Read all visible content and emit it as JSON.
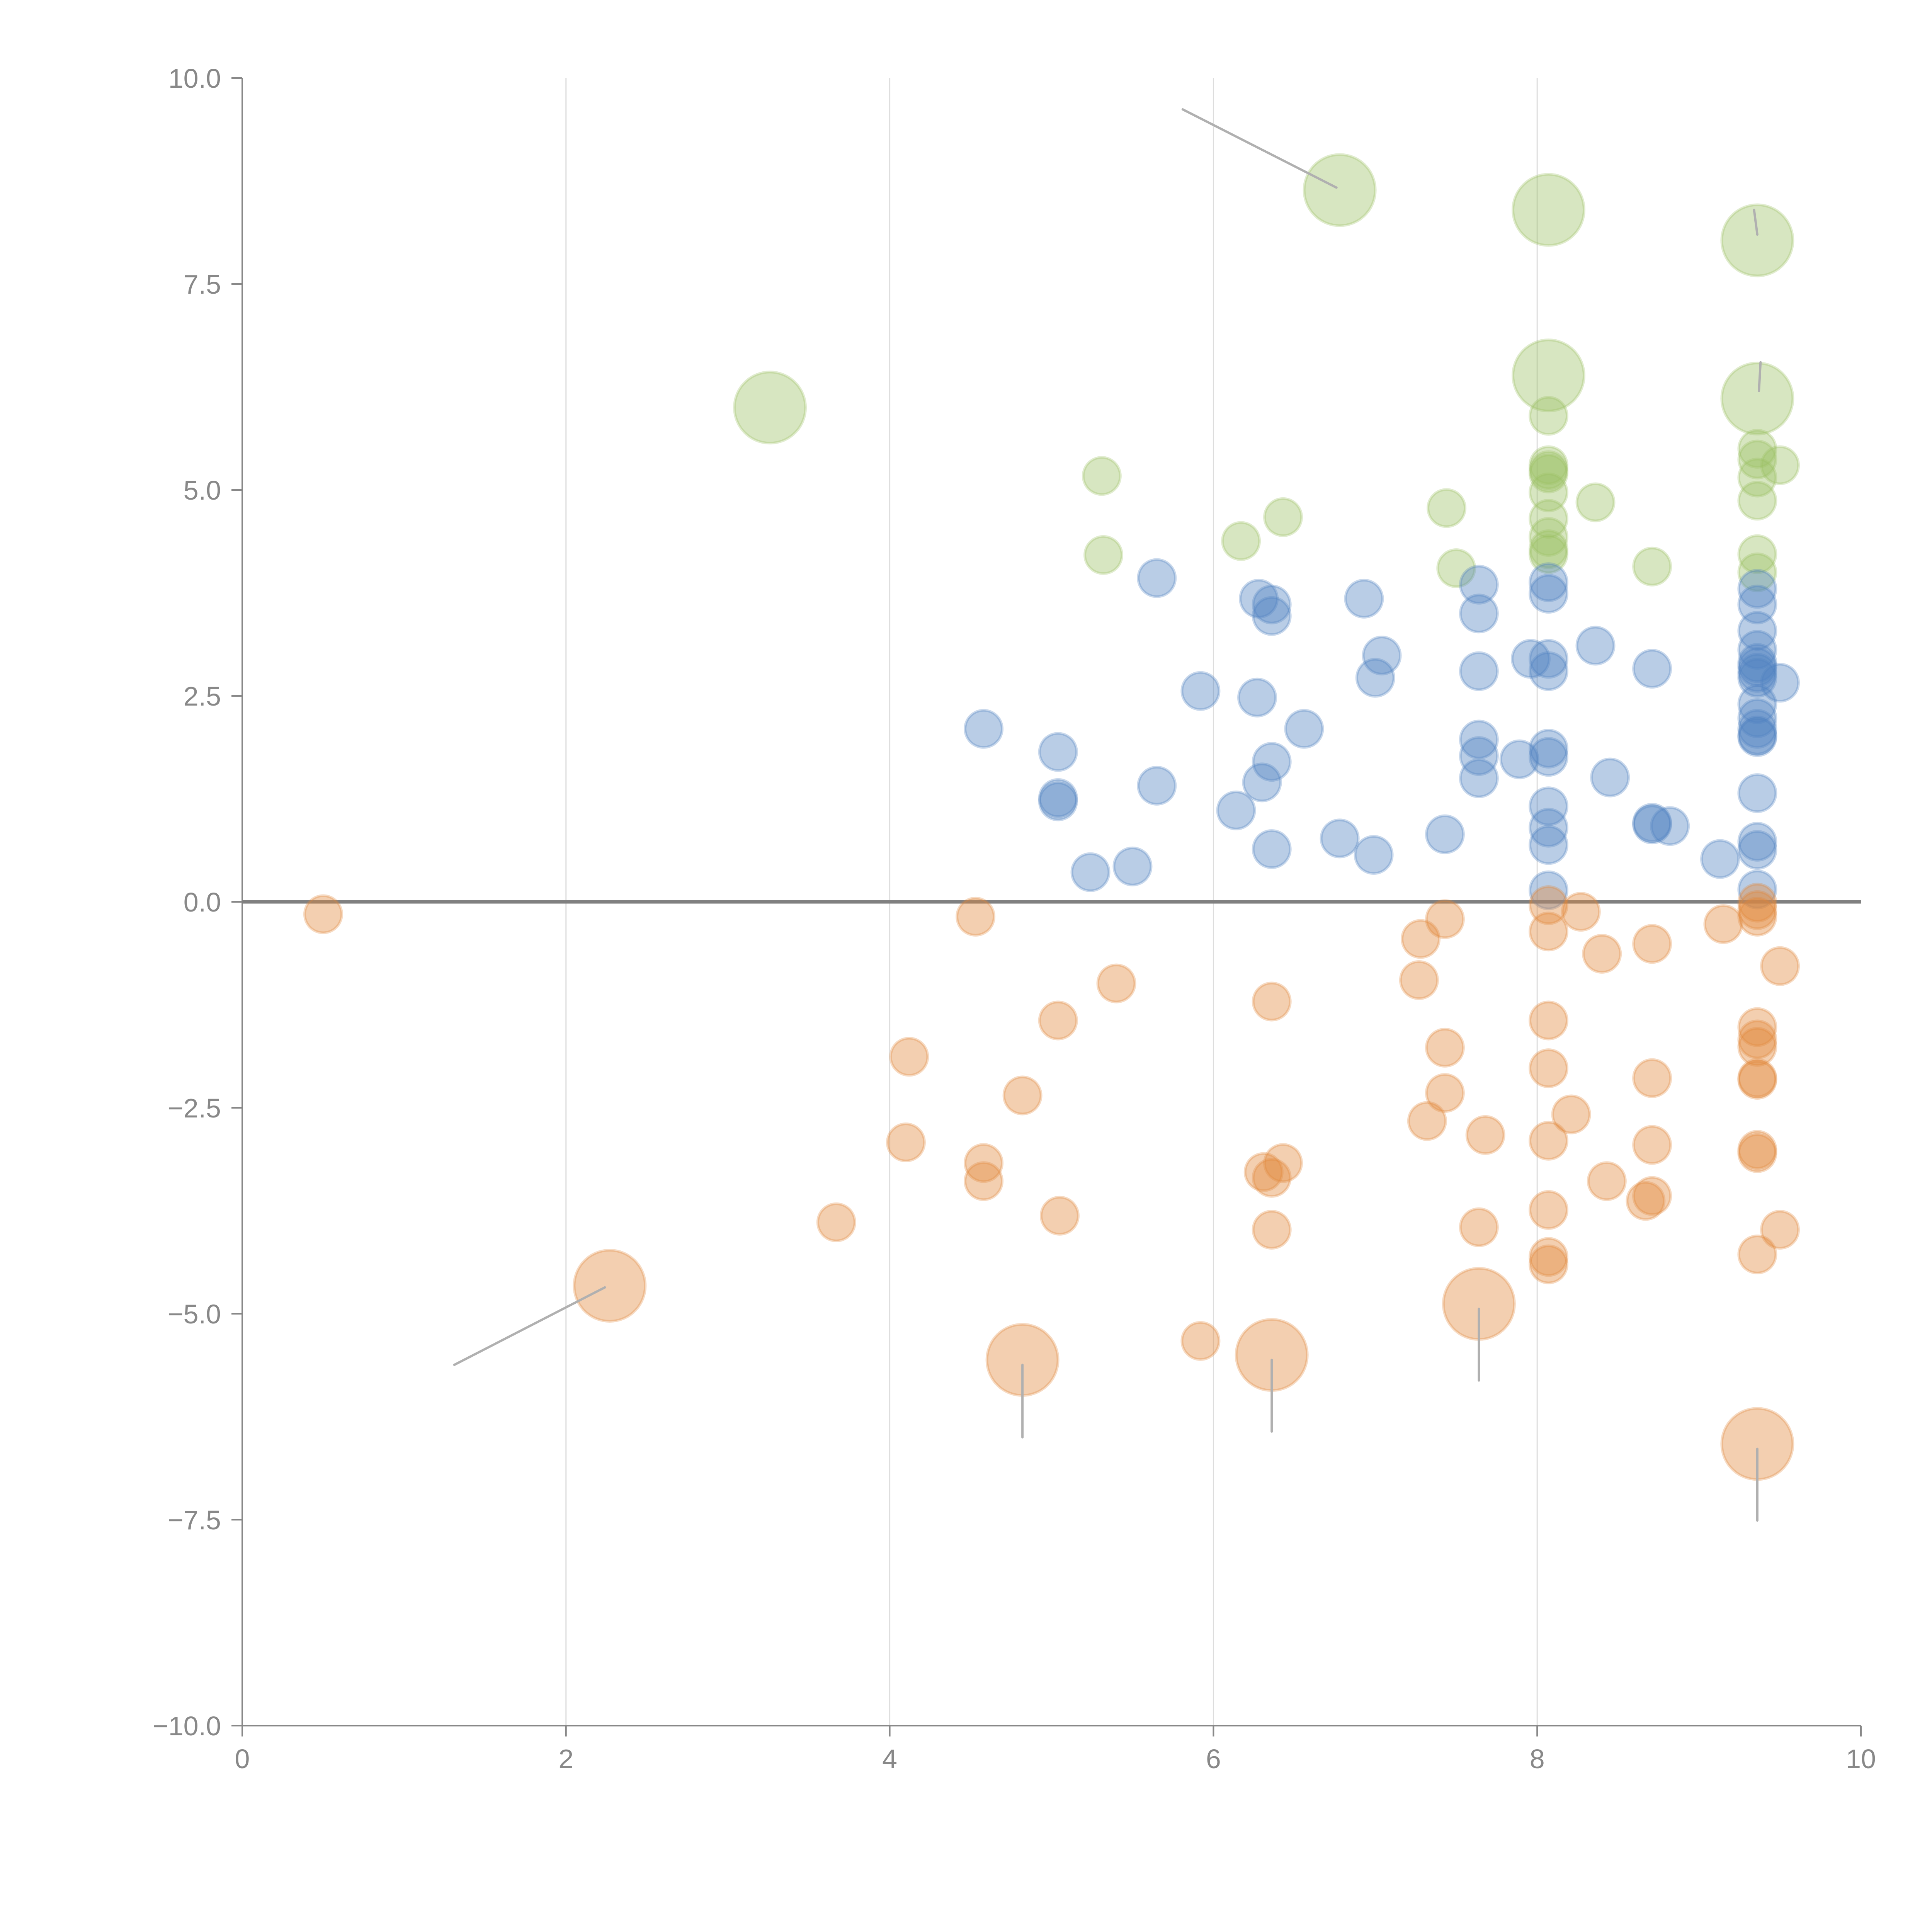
{
  "chart_data": {
    "type": "scatter",
    "title": "",
    "xlabel": "",
    "ylabel": "",
    "xlim": [
      0,
      10
    ],
    "ylim": [
      -10,
      10
    ],
    "x_ticks": [
      "0",
      "2",
      "4",
      "6",
      "8",
      "10"
    ],
    "y_ticks": [
      "10.0",
      "7.5",
      "5.0",
      "2.5",
      "0.0",
      "−2.5",
      "−5.0",
      "−7.5",
      "−10.0"
    ],
    "x_tick_values": [
      0,
      2,
      4,
      6,
      8,
      10
    ],
    "y_tick_values": [
      10,
      7.5,
      5,
      2.5,
      0,
      -2.5,
      -5,
      -7.5,
      -10
    ],
    "grid": "vertical",
    "legend": "none",
    "series": [
      {
        "name": "green",
        "color": "#9BC165",
        "points": [
          {
            "x": 6.78,
            "y": 8.64,
            "size": "large"
          },
          {
            "x": 8.07,
            "y": 8.4,
            "size": "large"
          },
          {
            "x": 9.36,
            "y": 8.03,
            "size": "large"
          },
          {
            "x": 3.26,
            "y": 6.0,
            "size": "large"
          },
          {
            "x": 8.07,
            "y": 6.39,
            "size": "large"
          },
          {
            "x": 9.36,
            "y": 6.11,
            "size": "large"
          },
          {
            "x": 8.07,
            "y": 5.9
          },
          {
            "x": 5.31,
            "y": 5.17
          },
          {
            "x": 8.07,
            "y": 5.3
          },
          {
            "x": 8.07,
            "y": 5.24
          },
          {
            "x": 8.07,
            "y": 5.2
          },
          {
            "x": 9.36,
            "y": 5.5
          },
          {
            "x": 9.36,
            "y": 5.37
          },
          {
            "x": 9.5,
            "y": 5.3
          },
          {
            "x": 9.36,
            "y": 5.15
          },
          {
            "x": 8.07,
            "y": 4.97
          },
          {
            "x": 9.36,
            "y": 4.87
          },
          {
            "x": 8.36,
            "y": 4.85
          },
          {
            "x": 7.44,
            "y": 4.78
          },
          {
            "x": 6.43,
            "y": 4.67
          },
          {
            "x": 8.07,
            "y": 4.65
          },
          {
            "x": 8.07,
            "y": 4.43
          },
          {
            "x": 6.17,
            "y": 4.38
          },
          {
            "x": 8.07,
            "y": 4.28
          },
          {
            "x": 8.07,
            "y": 4.22
          },
          {
            "x": 9.36,
            "y": 4.22
          },
          {
            "x": 5.32,
            "y": 4.21
          },
          {
            "x": 8.71,
            "y": 4.07
          },
          {
            "x": 7.5,
            "y": 4.05
          },
          {
            "x": 9.36,
            "y": 4.0
          }
        ]
      },
      {
        "name": "blue",
        "color": "#4F81C1",
        "points": [
          {
            "x": 5.65,
            "y": 3.93
          },
          {
            "x": 8.07,
            "y": 3.88
          },
          {
            "x": 7.64,
            "y": 3.85
          },
          {
            "x": 9.36,
            "y": 3.8
          },
          {
            "x": 8.07,
            "y": 3.74
          },
          {
            "x": 6.28,
            "y": 3.68
          },
          {
            "x": 6.93,
            "y": 3.68
          },
          {
            "x": 6.36,
            "y": 3.61
          },
          {
            "x": 9.36,
            "y": 3.61
          },
          {
            "x": 6.36,
            "y": 3.47
          },
          {
            "x": 7.64,
            "y": 3.5
          },
          {
            "x": 9.36,
            "y": 3.29
          },
          {
            "x": 8.36,
            "y": 3.11
          },
          {
            "x": 9.36,
            "y": 3.06
          },
          {
            "x": 7.04,
            "y": 2.99
          },
          {
            "x": 8.07,
            "y": 2.95
          },
          {
            "x": 7.96,
            "y": 2.95
          },
          {
            "x": 9.36,
            "y": 2.9
          },
          {
            "x": 9.36,
            "y": 2.85
          },
          {
            "x": 8.71,
            "y": 2.83
          },
          {
            "x": 7.64,
            "y": 2.8
          },
          {
            "x": 8.07,
            "y": 2.8
          },
          {
            "x": 9.36,
            "y": 2.78
          },
          {
            "x": 9.36,
            "y": 2.72
          },
          {
            "x": 7.0,
            "y": 2.72
          },
          {
            "x": 9.5,
            "y": 2.66
          },
          {
            "x": 5.92,
            "y": 2.56
          },
          {
            "x": 6.27,
            "y": 2.48
          },
          {
            "x": 9.36,
            "y": 2.4
          },
          {
            "x": 9.36,
            "y": 2.23
          },
          {
            "x": 4.58,
            "y": 2.1
          },
          {
            "x": 6.56,
            "y": 2.1
          },
          {
            "x": 9.36,
            "y": 2.1
          },
          {
            "x": 9.36,
            "y": 2.02
          },
          {
            "x": 9.36,
            "y": 2.0
          },
          {
            "x": 7.64,
            "y": 1.97
          },
          {
            "x": 8.07,
            "y": 1.86
          },
          {
            "x": 5.04,
            "y": 1.82
          },
          {
            "x": 7.64,
            "y": 1.77
          },
          {
            "x": 8.07,
            "y": 1.76
          },
          {
            "x": 7.89,
            "y": 1.73
          },
          {
            "x": 6.36,
            "y": 1.7
          },
          {
            "x": 8.45,
            "y": 1.51
          },
          {
            "x": 7.64,
            "y": 1.5
          },
          {
            "x": 6.3,
            "y": 1.45
          },
          {
            "x": 5.65,
            "y": 1.41
          },
          {
            "x": 9.36,
            "y": 1.32
          },
          {
            "x": 5.04,
            "y": 1.26
          },
          {
            "x": 5.04,
            "y": 1.22
          },
          {
            "x": 8.07,
            "y": 1.16
          },
          {
            "x": 6.14,
            "y": 1.11
          },
          {
            "x": 8.71,
            "y": 0.96
          },
          {
            "x": 8.71,
            "y": 0.94
          },
          {
            "x": 8.82,
            "y": 0.92
          },
          {
            "x": 8.07,
            "y": 0.9
          },
          {
            "x": 7.43,
            "y": 0.82
          },
          {
            "x": 6.78,
            "y": 0.77
          },
          {
            "x": 9.36,
            "y": 0.73
          },
          {
            "x": 8.07,
            "y": 0.69
          },
          {
            "x": 6.36,
            "y": 0.64
          },
          {
            "x": 9.36,
            "y": 0.63
          },
          {
            "x": 6.99,
            "y": 0.57
          },
          {
            "x": 9.13,
            "y": 0.52
          },
          {
            "x": 5.5,
            "y": 0.43
          },
          {
            "x": 5.24,
            "y": 0.36
          },
          {
            "x": 9.36,
            "y": 0.15
          },
          {
            "x": 8.07,
            "y": 0.14
          }
        ]
      },
      {
        "name": "orange",
        "color": "#E0883A",
        "points": [
          {
            "x": 8.07,
            "y": -0.04
          },
          {
            "x": 9.36,
            "y": -0.01
          },
          {
            "x": 9.36,
            "y": -0.1
          },
          {
            "x": 8.27,
            "y": -0.12
          },
          {
            "x": 0.5,
            "y": -0.15
          },
          {
            "x": 4.53,
            "y": -0.18
          },
          {
            "x": 9.36,
            "y": -0.18
          },
          {
            "x": 7.43,
            "y": -0.21
          },
          {
            "x": 9.15,
            "y": -0.27
          },
          {
            "x": 8.07,
            "y": -0.36
          },
          {
            "x": 7.28,
            "y": -0.45
          },
          {
            "x": 8.71,
            "y": -0.51
          },
          {
            "x": 8.4,
            "y": -0.63
          },
          {
            "x": 9.5,
            "y": -0.78
          },
          {
            "x": 7.27,
            "y": -0.95
          },
          {
            "x": 5.4,
            "y": -0.99
          },
          {
            "x": 6.36,
            "y": -1.21
          },
          {
            "x": 5.04,
            "y": -1.44
          },
          {
            "x": 8.07,
            "y": -1.44
          },
          {
            "x": 9.36,
            "y": -1.52
          },
          {
            "x": 9.36,
            "y": -1.67
          },
          {
            "x": 9.36,
            "y": -1.76
          },
          {
            "x": 7.43,
            "y": -1.77
          },
          {
            "x": 4.12,
            "y": -1.88
          },
          {
            "x": 8.07,
            "y": -2.02
          },
          {
            "x": 8.71,
            "y": -2.14
          },
          {
            "x": 9.36,
            "y": -2.14
          },
          {
            "x": 9.36,
            "y": -2.16
          },
          {
            "x": 7.43,
            "y": -2.32
          },
          {
            "x": 4.82,
            "y": -2.35
          },
          {
            "x": 8.21,
            "y": -2.58
          },
          {
            "x": 7.32,
            "y": -2.66
          },
          {
            "x": 7.68,
            "y": -2.83
          },
          {
            "x": 8.07,
            "y": -2.9
          },
          {
            "x": 4.1,
            "y": -2.92
          },
          {
            "x": 8.71,
            "y": -2.95
          },
          {
            "x": 9.36,
            "y": -3.01
          },
          {
            "x": 9.36,
            "y": -3.05
          },
          {
            "x": 4.58,
            "y": -3.17
          },
          {
            "x": 6.43,
            "y": -3.17
          },
          {
            "x": 6.31,
            "y": -3.28
          },
          {
            "x": 6.36,
            "y": -3.35
          },
          {
            "x": 4.58,
            "y": -3.39
          },
          {
            "x": 8.43,
            "y": -3.39
          },
          {
            "x": 8.71,
            "y": -3.57
          },
          {
            "x": 8.67,
            "y": -3.63
          },
          {
            "x": 8.07,
            "y": -3.74
          },
          {
            "x": 5.05,
            "y": -3.81
          },
          {
            "x": 3.67,
            "y": -3.89
          },
          {
            "x": 7.64,
            "y": -3.95
          },
          {
            "x": 9.5,
            "y": -3.98
          },
          {
            "x": 6.36,
            "y": -3.98
          },
          {
            "x": 9.36,
            "y": -4.28
          },
          {
            "x": 8.07,
            "y": -4.31
          },
          {
            "x": 8.07,
            "y": -4.4
          },
          {
            "x": 2.27,
            "y": -4.66,
            "size": "large"
          },
          {
            "x": 7.64,
            "y": -4.88,
            "size": "large"
          },
          {
            "x": 5.92,
            "y": -5.33
          },
          {
            "x": 6.36,
            "y": -5.5,
            "size": "large"
          },
          {
            "x": 4.82,
            "y": -5.56,
            "size": "large"
          },
          {
            "x": 9.36,
            "y": -6.58,
            "size": "large"
          }
        ]
      }
    ],
    "annotations": [
      {
        "from": {
          "x": 5.81,
          "y": 9.62
        },
        "to": {
          "x": 6.76,
          "y": 8.67
        }
      },
      {
        "from": {
          "x": 9.36,
          "y": 8.1
        },
        "to": {
          "x": 9.34,
          "y": 8.4
        }
      },
      {
        "from": {
          "x": 9.37,
          "y": 6.2
        },
        "to": {
          "x": 9.38,
          "y": 6.55
        }
      },
      {
        "from": {
          "x": 1.31,
          "y": -5.62
        },
        "to": {
          "x": 2.24,
          "y": -4.68
        }
      },
      {
        "from": {
          "x": 4.82,
          "y": -5.62
        },
        "to": {
          "x": 4.82,
          "y": -6.5
        }
      },
      {
        "from": {
          "x": 6.36,
          "y": -5.56
        },
        "to": {
          "x": 6.36,
          "y": -6.43
        }
      },
      {
        "from": {
          "x": 7.64,
          "y": -4.94
        },
        "to": {
          "x": 7.64,
          "y": -5.81
        }
      },
      {
        "from": {
          "x": 9.36,
          "y": -6.64
        },
        "to": {
          "x": 9.36,
          "y": -7.51
        }
      }
    ]
  }
}
